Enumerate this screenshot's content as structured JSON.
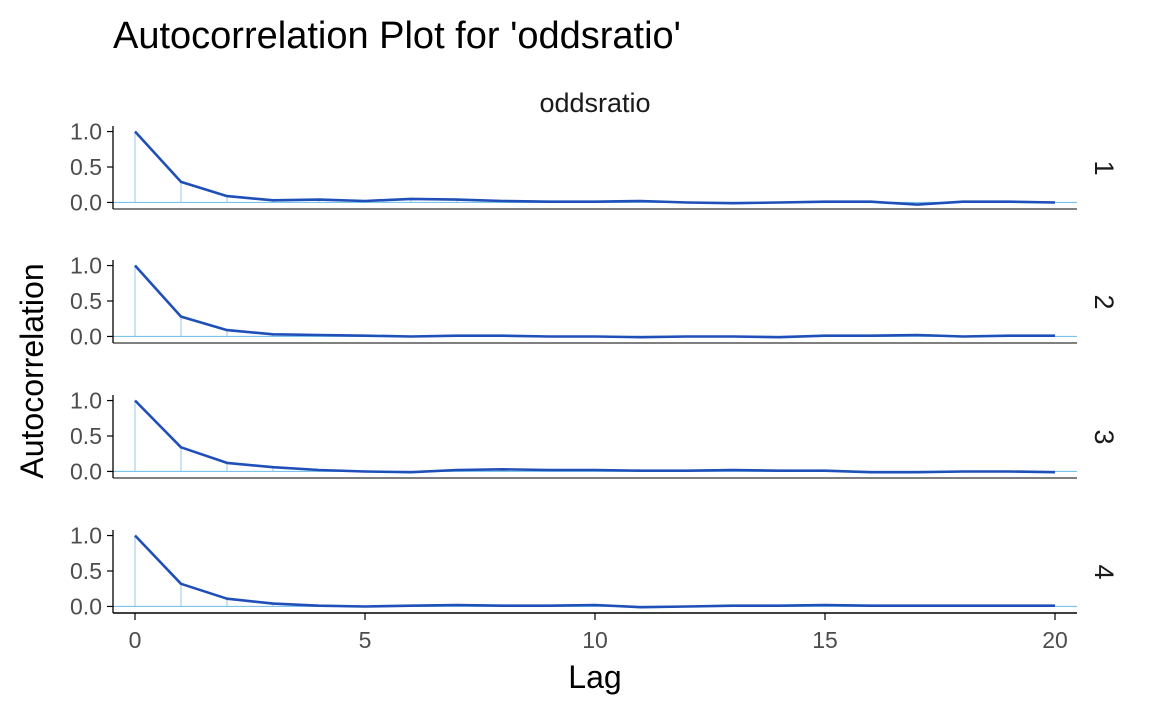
{
  "chart_data": {
    "type": "line",
    "title": "Autocorrelation Plot for 'oddsratio'",
    "facet_label": "oddsratio",
    "xlabel": "Lag",
    "ylabel": "Autocorrelation",
    "xlim": [
      0,
      20
    ],
    "ylim": [
      -0.05,
      1.05
    ],
    "x_ticks": [
      0,
      5,
      10,
      15,
      20
    ],
    "y_ticks": [
      0.0,
      0.5,
      1.0
    ],
    "y_tick_labels": [
      "0.0",
      "0.5",
      "1.0"
    ],
    "grid": false,
    "legend": "none",
    "lags": [
      0,
      1,
      2,
      3,
      4,
      5,
      6,
      7,
      8,
      9,
      10,
      11,
      12,
      13,
      14,
      15,
      16,
      17,
      18,
      19,
      20
    ],
    "series": [
      {
        "name": "1",
        "values": [
          1.0,
          0.29,
          0.09,
          0.03,
          0.04,
          0.02,
          0.05,
          0.04,
          0.02,
          0.01,
          0.01,
          0.02,
          0.0,
          -0.01,
          0.0,
          0.01,
          0.01,
          -0.03,
          0.01,
          0.01,
          0.0
        ]
      },
      {
        "name": "2",
        "values": [
          1.0,
          0.28,
          0.09,
          0.03,
          0.02,
          0.01,
          0.0,
          0.01,
          0.01,
          0.0,
          0.0,
          -0.01,
          0.0,
          0.0,
          -0.01,
          0.01,
          0.01,
          0.02,
          0.0,
          0.01,
          0.01
        ]
      },
      {
        "name": "3",
        "values": [
          1.0,
          0.34,
          0.12,
          0.06,
          0.02,
          0.0,
          -0.01,
          0.02,
          0.03,
          0.02,
          0.02,
          0.01,
          0.01,
          0.02,
          0.01,
          0.01,
          -0.01,
          -0.01,
          0.0,
          0.0,
          -0.01
        ]
      },
      {
        "name": "4",
        "values": [
          1.0,
          0.32,
          0.11,
          0.04,
          0.01,
          0.0,
          0.01,
          0.02,
          0.01,
          0.01,
          0.02,
          -0.01,
          0.0,
          0.01,
          0.01,
          0.02,
          0.01,
          0.01,
          0.01,
          0.01,
          0.01
        ]
      }
    ],
    "colors": {
      "line": "#1f4fb8",
      "stem": "#a6d3ec",
      "zero_line": "#7cc3ea",
      "axis": "#000000",
      "strip_text": "#1a1a1a"
    }
  }
}
